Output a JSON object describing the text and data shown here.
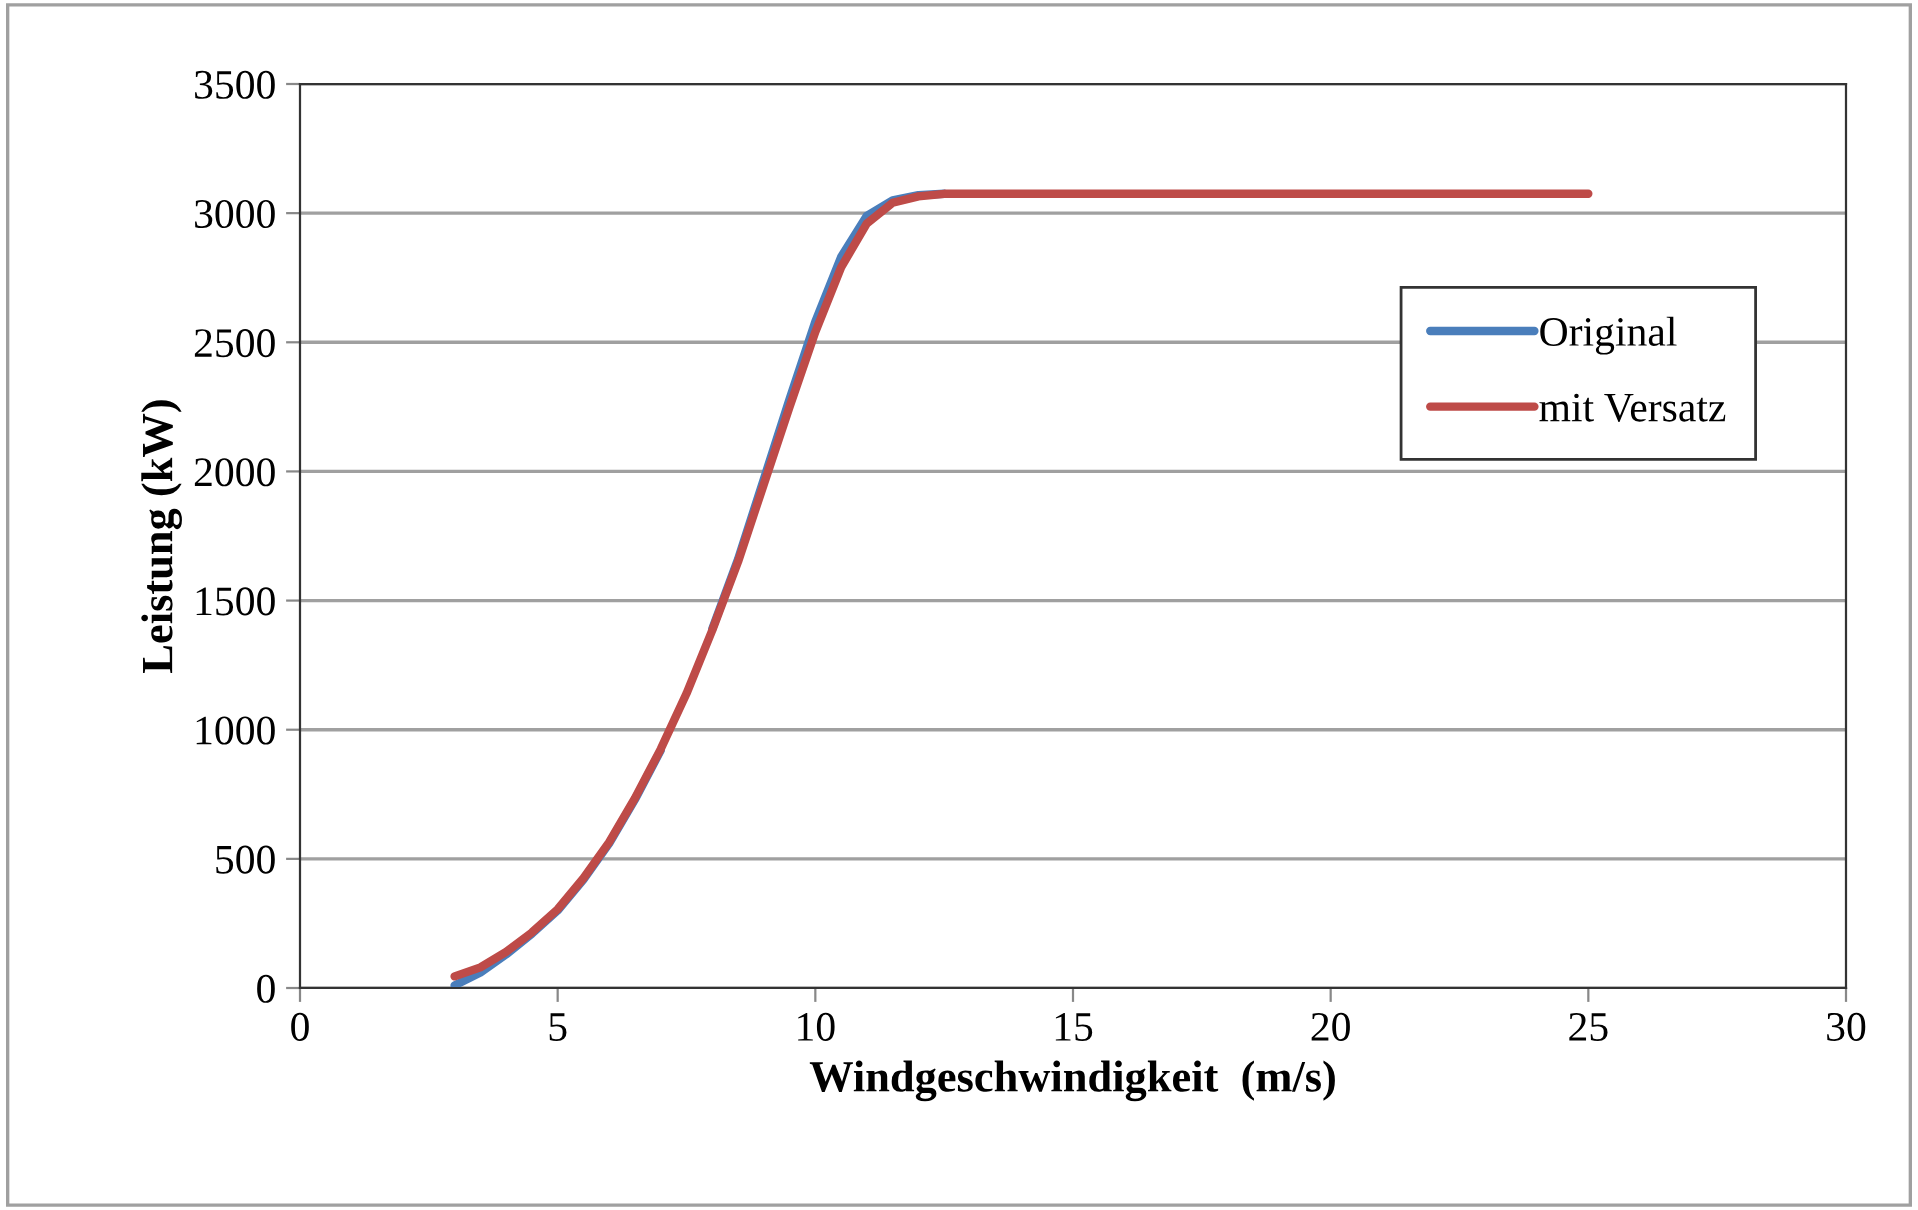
{
  "chart_data": {
    "type": "line",
    "xlabel": "Windgeschwindigkeit  (m/s)",
    "ylabel": "Leistung (kW)",
    "xlim": [
      0,
      30
    ],
    "xticks": [
      0,
      5,
      10,
      15,
      20,
      25,
      30
    ],
    "ylim": [
      0,
      3500
    ],
    "yticks": [
      0,
      500,
      1000,
      1500,
      2000,
      2500,
      3000,
      3500
    ],
    "grid": "y",
    "legend": "right",
    "marker": "none",
    "line_style": "solid",
    "series": [
      {
        "name": "Original",
        "color": "#4a7ebb",
        "x": [
          3,
          3.5,
          4,
          4.5,
          5,
          5.5,
          6,
          6.5,
          7,
          7.5,
          8,
          8.5,
          9,
          9.5,
          10,
          10.5,
          11,
          11.5,
          12,
          12.5
        ],
        "values": [
          10,
          60,
          130,
          210,
          300,
          420,
          560,
          730,
          920,
          null,
          1390,
          1660,
          1970,
          2280,
          2580,
          2830,
          2990,
          3050,
          3070,
          3075
        ]
      },
      {
        "name": "mit Versatz",
        "color": "#be4b48",
        "x": [
          3,
          3.5,
          4,
          4.5,
          5,
          5.5,
          6,
          6.5,
          7,
          7.5,
          8,
          8.5,
          9,
          9.5,
          10,
          10.5,
          11,
          11.5,
          12,
          12.5,
          13,
          25
        ],
        "values": [
          45,
          80,
          140,
          215,
          305,
          425,
          565,
          735,
          925,
          1140,
          1385,
          1650,
          1950,
          2250,
          2540,
          2790,
          2960,
          3040,
          3065,
          3075,
          3075,
          3075
        ]
      }
    ]
  }
}
